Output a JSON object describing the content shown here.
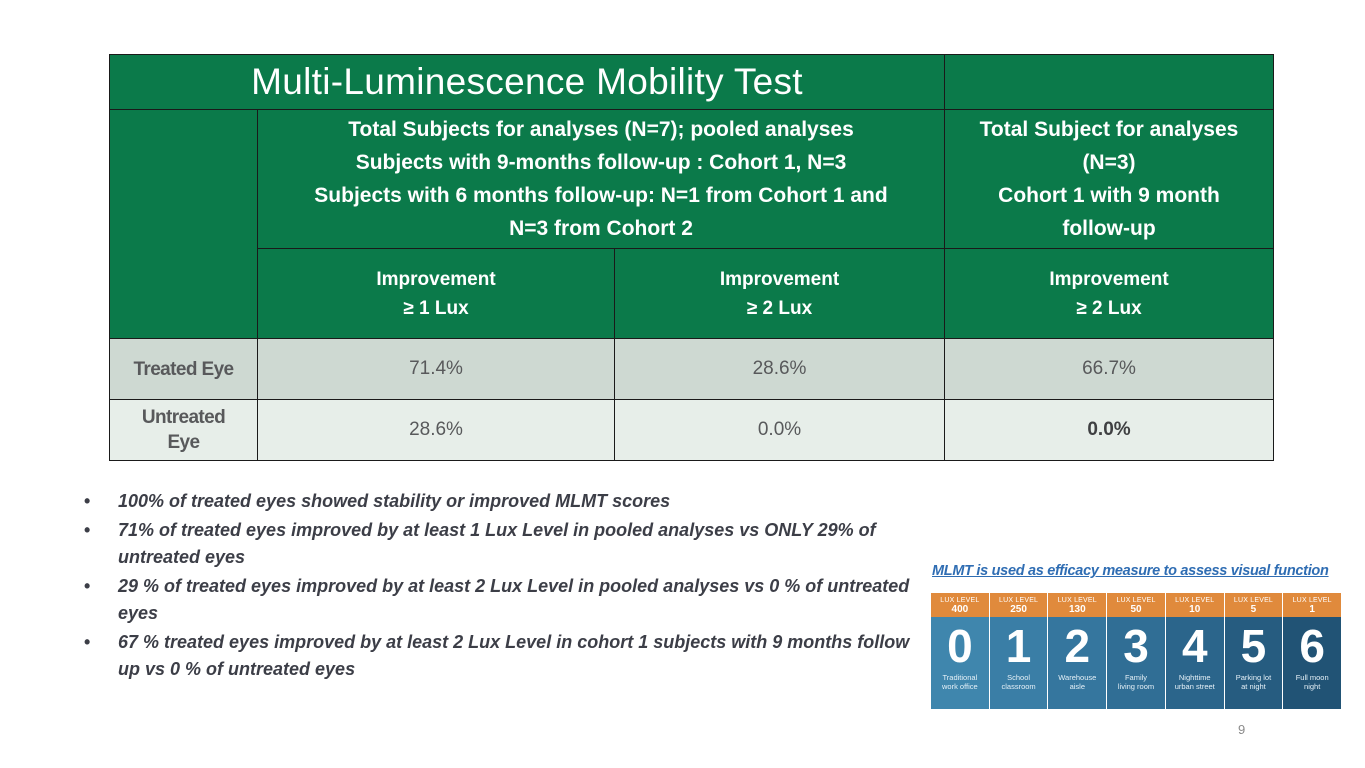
{
  "table": {
    "title": "Multi-Luminescence Mobility Test",
    "pooled_header": [
      "Total Subjects for analyses (N=7); pooled analyses",
      "Subjects with 9-months follow-up : Cohort 1, N=3",
      "Subjects with 6 months follow-up: N=1 from Cohort 1 and",
      "N=3 from Cohort 2"
    ],
    "cohort_header": [
      "Total Subject for analyses",
      "(N=3)",
      "Cohort 1 with 9 month",
      "follow-up"
    ],
    "columns": [
      {
        "line1": "Improvement",
        "line2": "≥ 1 Lux"
      },
      {
        "line1": "Improvement",
        "line2": "≥ 2 Lux"
      },
      {
        "line1": "Improvement",
        "line2": "≥ 2 Lux"
      }
    ],
    "rows": [
      {
        "label_lines": [
          "Treated Eye"
        ],
        "values": [
          "71.4%",
          "28.6%",
          "66.7%"
        ]
      },
      {
        "label_lines": [
          "Untreated",
          "Eye"
        ],
        "values": [
          "28.6%",
          "0.0%",
          "0.0%"
        ]
      }
    ]
  },
  "bullet_symbol": "•",
  "bullets": [
    "100% of treated eyes showed stability or improved MLMT scores",
    "71% of treated eyes improved by at least 1 Lux Level in pooled analyses vs ONLY 29% of untreated eyes",
    "29 % of treated eyes improved by at least 2 Lux Level in pooled analyses vs 0 % of untreated eyes",
    "67 % treated eyes improved by at least 2 Lux Level in cohort 1 subjects with 9 months follow up vs 0 % of untreated eyes"
  ],
  "mlmt_caption": "MLMT is used as efficacy measure to assess visual function",
  "lux_levels": [
    {
      "label": "LUX LEVEL",
      "lux": "400",
      "digit": "0",
      "desc1": "Traditional",
      "desc2": "work office",
      "color": "#3f86ad"
    },
    {
      "label": "LUX LEVEL",
      "lux": "250",
      "digit": "1",
      "desc1": "School",
      "desc2": "classroom",
      "color": "#3a7ea6"
    },
    {
      "label": "LUX LEVEL",
      "lux": "130",
      "digit": "2",
      "desc1": "Warehouse",
      "desc2": "aisle",
      "color": "#35769e"
    },
    {
      "label": "LUX LEVEL",
      "lux": "50",
      "digit": "3",
      "desc1": "Family",
      "desc2": "living room",
      "color": "#306e95"
    },
    {
      "label": "LUX LEVEL",
      "lux": "10",
      "digit": "4",
      "desc1": "Nighttime",
      "desc2": "urban street",
      "color": "#2b658b"
    },
    {
      "label": "LUX LEVEL",
      "lux": "5",
      "digit": "5",
      "desc1": "Parking lot",
      "desc2": "at night",
      "color": "#265c80"
    },
    {
      "label": "LUX LEVEL",
      "lux": "1",
      "digit": "6",
      "desc1": "Full moon",
      "desc2": "night",
      "color": "#215375"
    }
  ],
  "page_number": "9"
}
